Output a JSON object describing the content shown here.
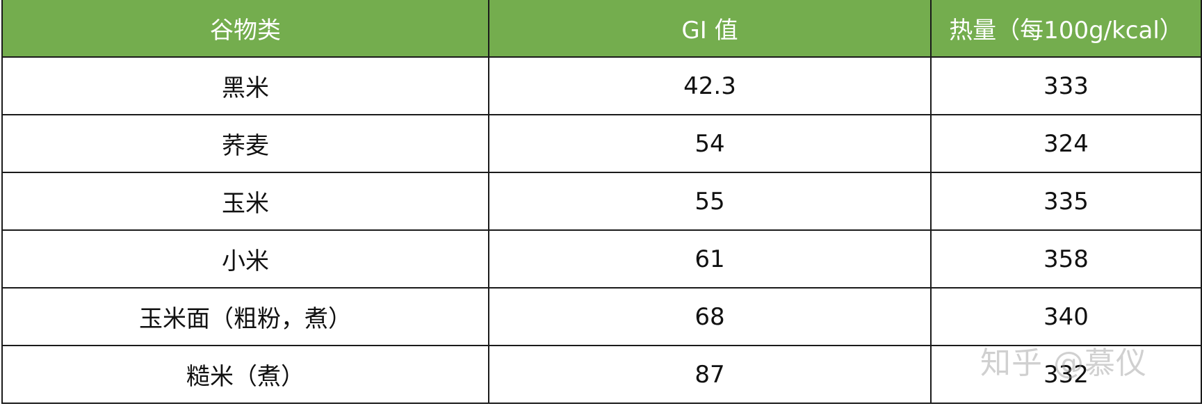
{
  "table": {
    "headers": [
      "谷物类",
      "GI 值",
      "热量（每100g/kcal）"
    ],
    "rows": [
      [
        "黑米",
        "42.3",
        "333"
      ],
      [
        "荞麦",
        "54",
        "324"
      ],
      [
        "玉米",
        "55",
        "335"
      ],
      [
        "小米",
        "61",
        "358"
      ],
      [
        "玉米面（粗粉，煮）",
        "68",
        "340"
      ],
      [
        "糙米（煮）",
        "87",
        "332"
      ]
    ]
  },
  "watermark": "知乎 @慕仪",
  "colors": {
    "header_bg": "#74ad4e",
    "header_text": "#ffffff",
    "border": "#1a1a1a"
  }
}
